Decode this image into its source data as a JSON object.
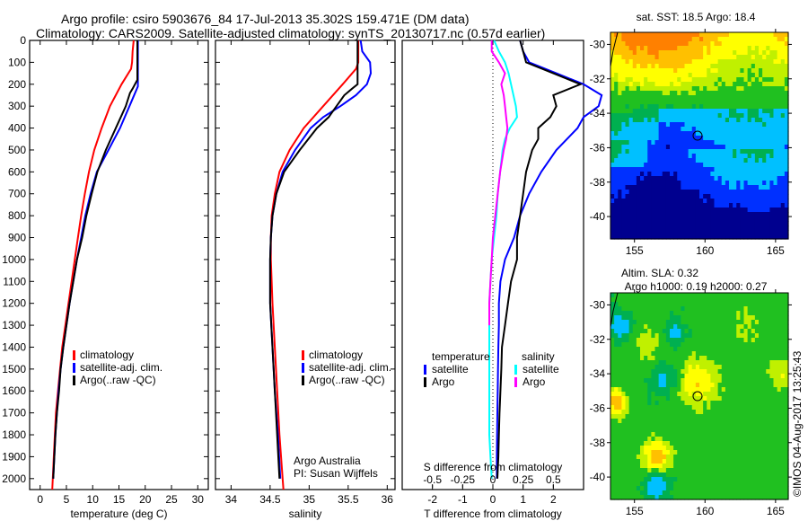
{
  "titles": {
    "line1": "Argo profile: csiro 5903676_84 17-Jul-2013 35.302S 159.471E (DM data)",
    "line2": "Climatology: CARS2009. Satellite-adjusted climatology: synTS_20130717.nc (0.57d earlier)"
  },
  "colors": {
    "climatology": "#ff0000",
    "satellite": "#0000ff",
    "argo": "#000000",
    "sal_satellite": "#00ffff",
    "sal_argo": "#ff00ff"
  },
  "chart_data": [
    {
      "id": "temperature",
      "type": "line",
      "xlabel": "temperature (deg C)",
      "ylabel": "",
      "xlim": [
        -2,
        32
      ],
      "ylim": [
        2050,
        0
      ],
      "xticks": [
        0,
        5,
        10,
        15,
        20,
        25,
        30
      ],
      "yticks": [
        0,
        100,
        200,
        300,
        400,
        500,
        600,
        700,
        800,
        900,
        1000,
        1100,
        1200,
        1300,
        1400,
        1500,
        1600,
        1700,
        1800,
        1900,
        2000
      ],
      "legend": {
        "placement": "center",
        "entries": [
          "climatology",
          "satellite-adj. clim.",
          "Argo(..raw -QC)"
        ]
      },
      "series": [
        {
          "name": "climatology",
          "color": "#ff0000",
          "depth": [
            0,
            50,
            100,
            130,
            200,
            300,
            400,
            500,
            600,
            700,
            800,
            900,
            1000,
            1100,
            1200,
            1300,
            1400,
            1500,
            1600,
            1700,
            1800,
            1900,
            2000,
            2050
          ],
          "values": [
            17.8,
            17.6,
            17.5,
            17.3,
            15.5,
            13.3,
            11.7,
            10.3,
            9.3,
            8.5,
            7.8,
            7.2,
            6.6,
            6.0,
            5.4,
            4.8,
            4.2,
            3.8,
            3.4,
            3.0,
            2.8,
            2.6,
            2.4,
            2.3
          ]
        },
        {
          "name": "satellite-adj. clim.",
          "color": "#0000ff",
          "depth": [
            0,
            50,
            100,
            200,
            210,
            300,
            400,
            500,
            600,
            700,
            800,
            900,
            1000,
            1100,
            1200,
            1300,
            1400,
            1500,
            1600,
            1700,
            1800,
            1900,
            2000
          ],
          "values": [
            18.6,
            18.6,
            18.6,
            18.6,
            18.6,
            17.0,
            15.2,
            13.0,
            10.8,
            9.6,
            8.6,
            7.8,
            7.0,
            6.3,
            5.6,
            5.0,
            4.4,
            3.9,
            3.5,
            3.2,
            2.9,
            2.7,
            2.5
          ]
        },
        {
          "name": "Argo(..raw -QC)",
          "color": "#000000",
          "depth": [
            0,
            50,
            100,
            180,
            220,
            240,
            300,
            400,
            500,
            600,
            700,
            800,
            900,
            1000,
            1100,
            1200,
            1300,
            1400,
            1500,
            1600,
            1700,
            1800,
            1900,
            2000
          ],
          "values": [
            18.5,
            18.5,
            18.5,
            18.5,
            17.6,
            17.1,
            16.3,
            14.4,
            12.5,
            10.9,
            9.8,
            8.8,
            8.0,
            7.0,
            6.3,
            5.6,
            5.0,
            4.4,
            3.9,
            3.6,
            3.2,
            2.9,
            2.7,
            2.5
          ]
        }
      ]
    },
    {
      "id": "salinity",
      "type": "line",
      "xlabel": "salinity",
      "ylabel": "",
      "xlim": [
        33.8,
        36.1
      ],
      "ylim": [
        2050,
        0
      ],
      "xticks": [
        34,
        34.5,
        35,
        35.5,
        36
      ],
      "xticklabels": [
        "34",
        "34.5",
        "35",
        "35.5",
        "36"
      ],
      "legend": {
        "placement": "center-right",
        "entries": [
          "climatology",
          "satellite-adj. clim.",
          "Argo(..raw -QC)"
        ]
      },
      "annotation": [
        "Argo Australia",
        "PI: Susan Wijffels"
      ],
      "series": [
        {
          "name": "climatology",
          "color": "#ff0000",
          "depth": [
            0,
            100,
            130,
            200,
            300,
            400,
            500,
            600,
            700,
            800,
            900,
            1000,
            1100,
            1200,
            1400,
            1600,
            1800,
            2000,
            2050
          ],
          "values": [
            35.63,
            35.63,
            35.6,
            35.43,
            35.18,
            34.93,
            34.75,
            34.62,
            34.56,
            34.52,
            34.51,
            34.51,
            34.52,
            34.53,
            34.56,
            34.59,
            34.62,
            34.66,
            34.67
          ]
        },
        {
          "name": "satellite-adj. clim.",
          "color": "#0000ff",
          "depth": [
            0,
            50,
            100,
            150,
            200,
            250,
            300,
            350,
            400,
            500,
            600,
            700,
            800,
            900,
            1000,
            1100,
            1200,
            1400,
            1600,
            1800,
            2000
          ],
          "values": [
            35.66,
            35.68,
            35.78,
            35.79,
            35.74,
            35.6,
            35.4,
            35.18,
            35.02,
            34.82,
            34.66,
            34.58,
            34.53,
            34.51,
            34.5,
            34.5,
            34.5,
            34.53,
            34.56,
            34.6,
            34.63
          ]
        },
        {
          "name": "Argo(..raw -QC)",
          "color": "#000000",
          "depth": [
            0,
            100,
            200,
            220,
            250,
            300,
            350,
            400,
            500,
            600,
            700,
            800,
            900,
            1000,
            1100,
            1200,
            1400,
            1600,
            1800,
            2000
          ],
          "values": [
            35.62,
            35.62,
            35.62,
            35.55,
            35.45,
            35.35,
            35.25,
            35.1,
            34.88,
            34.68,
            34.58,
            34.53,
            34.51,
            34.5,
            34.5,
            34.5,
            34.53,
            34.56,
            34.59,
            34.62
          ]
        }
      ]
    },
    {
      "id": "difference",
      "type": "line",
      "xlabel": "T difference from climatology",
      "x2label": "S difference from climatology",
      "xlim": [
        -3,
        3
      ],
      "x2lim": [
        -0.75,
        0.75
      ],
      "ylim": [
        2050,
        0
      ],
      "xticks": [
        -2,
        -1,
        0,
        1,
        2
      ],
      "x2ticks": [
        -0.5,
        -0.25,
        0,
        0.25,
        0.5
      ],
      "x2ticklabels": [
        "-0.5",
        "-0.25",
        "0",
        "0.25",
        "0.5"
      ],
      "legend": {
        "placement": "center",
        "entries": [
          {
            "group": "temperature",
            "name": "satellite"
          },
          {
            "group": "temperature",
            "name": "Argo"
          },
          {
            "group": "salinity",
            "name": "satellite"
          },
          {
            "group": "salinity",
            "name": "Argo"
          }
        ]
      },
      "series": [
        {
          "name": "temperature satellite",
          "color": "#0000ff",
          "depth": [
            0,
            50,
            100,
            150,
            200,
            250,
            300,
            350,
            400,
            500,
            600,
            700,
            800,
            900,
            1000,
            1100,
            1200,
            1300,
            1400,
            1500,
            1600,
            1700,
            1800,
            1900,
            2000
          ],
          "values": [
            0.9,
            1.0,
            1.2,
            2.1,
            3.0,
            3.6,
            3.5,
            3.0,
            2.8,
            2.1,
            1.6,
            1.2,
            0.9,
            0.7,
            0.4,
            0.25,
            0.2,
            0.2,
            0.18,
            0.17,
            0.16,
            0.15,
            0.14,
            0.13,
            0.13
          ]
        },
        {
          "name": "temperature Argo",
          "color": "#000000",
          "depth": [
            0,
            50,
            100,
            150,
            200,
            250,
            300,
            350,
            400,
            450,
            500,
            600,
            700,
            800,
            900,
            1000,
            1100,
            1200,
            1300,
            1400,
            1500,
            1600,
            1700,
            1800,
            1900,
            2000
          ],
          "values": [
            0.9,
            1.0,
            1.1,
            2.0,
            2.9,
            2.0,
            2.1,
            1.9,
            1.5,
            1.5,
            1.3,
            1.1,
            1.0,
            0.9,
            0.8,
            0.8,
            0.6,
            0.5,
            0.4,
            0.3,
            0.28,
            0.25,
            0.22,
            0.2,
            0.18,
            0.15
          ]
        },
        {
          "name": "salinity satellite",
          "color": "#00ffff",
          "depth": [
            0,
            50,
            100,
            150,
            200,
            250,
            300,
            350,
            400,
            450,
            500,
            600,
            700,
            800,
            900,
            1000,
            1100,
            1200,
            1300,
            1400,
            1500,
            1600,
            1700,
            1800,
            1900,
            2000
          ],
          "values": [
            0.01,
            0.05,
            0.1,
            0.13,
            0.15,
            0.17,
            0.19,
            0.2,
            0.14,
            0.1,
            0.08,
            0.06,
            0.04,
            0.03,
            0.01,
            -0.01,
            -0.02,
            -0.03,
            -0.03,
            -0.03,
            -0.03,
            -0.03,
            -0.03,
            -0.03,
            -0.02,
            -0.01
          ]
        },
        {
          "name": "salinity Argo",
          "color": "#ff00ff",
          "depth": [
            0,
            50,
            100,
            150,
            200,
            250,
            300,
            350,
            400,
            450,
            500,
            600,
            700,
            800,
            900,
            1000,
            1100,
            1200,
            1300
          ],
          "values": [
            -0.01,
            -0.01,
            0.05,
            0.1,
            0.07,
            0.09,
            0.1,
            0.11,
            0.12,
            0.11,
            0.09,
            0.06,
            0.04,
            0.02,
            0.0,
            -0.01,
            -0.02,
            -0.03,
            -0.03
          ]
        }
      ]
    },
    {
      "id": "sst_map",
      "type": "heatmap",
      "title": "sat. SST: 18.5 Argo: 18.4",
      "xticks": [
        155,
        160,
        165
      ],
      "yticks": [
        -30,
        -32,
        -34,
        -36,
        -38,
        -40
      ],
      "xlim": [
        153.3,
        165.9
      ],
      "ylim": [
        -41.3,
        -29.3
      ],
      "marker": {
        "lon": 159.471,
        "lat": -35.302
      },
      "description": "SST field: warm (orange) in north-west, cooler (green) mid, cold (blue) south"
    },
    {
      "id": "sla_map",
      "type": "heatmap",
      "title": "Altim. SLA: 0.32",
      "subtitle": "Argo h1000: 0.19 h2000: 0.27",
      "xticks": [
        155,
        160,
        165
      ],
      "yticks": [
        -30,
        -32,
        -34,
        -36,
        -38,
        -40
      ],
      "xlim": [
        153.3,
        165.9
      ],
      "ylim": [
        -41.3,
        -29.3
      ],
      "marker": {
        "lon": 159.471,
        "lat": -35.302
      },
      "description": "Sea level anomaly field with eddies"
    }
  ],
  "footer": {
    "copyright": "©IMOS 04-Aug-2017 13:25:43"
  }
}
